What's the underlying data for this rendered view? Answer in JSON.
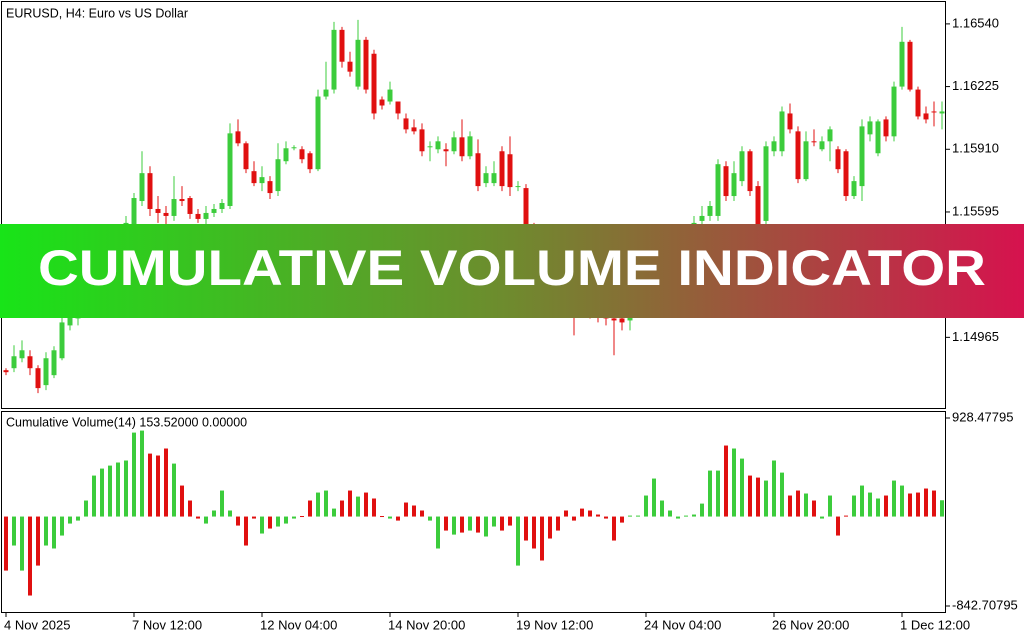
{
  "banner": "CUMULATIVE VOLUME INDICATOR",
  "chart_data": [
    {
      "type": "candlestick",
      "title": "EURUSD, H4:  Euro vs US Dollar",
      "up_color": "#3ccc3c",
      "down_color": "#e01010",
      "ylim": [
        1.1461,
        1.1665
      ],
      "yticks": [
        {
          "value": 1.1654,
          "label": "1.16540"
        },
        {
          "value": 1.16225,
          "label": "1.16225"
        },
        {
          "value": 1.1591,
          "label": "1.15910"
        },
        {
          "value": 1.15595,
          "label": "1.15595"
        },
        {
          "value": 1.14965,
          "label": "1.14965"
        }
      ],
      "categories": [
        "4 Nov 2025",
        null,
        null,
        null,
        null,
        null,
        null,
        null,
        null,
        null,
        null,
        null,
        null,
        null,
        null,
        null,
        "7 Nov 12:00",
        null,
        null,
        null,
        null,
        null,
        null,
        null,
        null,
        null,
        null,
        null,
        null,
        null,
        null,
        null,
        "12 Nov 04:00",
        null,
        null,
        null,
        null,
        null,
        null,
        null,
        null,
        null,
        null,
        null,
        null,
        null,
        null,
        null,
        "14 Nov 20:00",
        null,
        null,
        null,
        null,
        null,
        null,
        null,
        null,
        null,
        null,
        null,
        null,
        null,
        null,
        null,
        "19 Nov 12:00",
        null,
        null,
        null,
        null,
        null,
        null,
        null,
        null,
        null,
        null,
        null,
        null,
        null,
        null,
        null,
        "24 Nov 04:00",
        null,
        null,
        null,
        null,
        null,
        null,
        null,
        null,
        null,
        null,
        null,
        null,
        null,
        null,
        null,
        "26 Nov 20:00",
        null,
        null,
        null,
        null,
        null,
        null,
        null,
        null,
        null,
        null,
        null,
        null,
        null,
        null,
        null,
        "1 Dec 12:00",
        null,
        null,
        null,
        null,
        null
      ],
      "open": [
        1.148,
        1.1481,
        1.1486,
        1.1487,
        1.1481,
        1.14725,
        1.14775,
        1.1486,
        1.15025,
        1.1506,
        1.1515,
        1.15225,
        1.153,
        1.1534,
        1.1541,
        1.15475,
        1.15525,
        1.1565,
        1.1579,
        1.1561,
        1.1559,
        1.15575,
        1.1566,
        1.15665,
        1.15585,
        1.1556,
        1.1559,
        1.1561,
        1.15625,
        1.16,
        1.1594,
        1.158,
        1.1574,
        1.1575,
        1.157,
        1.1585,
        1.15915,
        1.1591,
        1.1589,
        1.1581,
        1.16175,
        1.1621,
        1.1651,
        1.1635,
        1.16225,
        1.1646,
        1.1639,
        1.1616,
        1.1615,
        1.1615,
        1.16065,
        1.1602,
        1.1601,
        1.1592,
        1.1591,
        1.1591,
        1.159,
        1.1597,
        1.15875,
        1.1589,
        1.1574,
        1.1574,
        1.159,
        1.15885,
        1.1572,
        1.15715,
        1.1551,
        1.15425,
        1.1534,
        1.153,
        1.1524,
        1.1519,
        1.1515,
        1.15125,
        1.151,
        1.15075,
        1.1506,
        1.1506,
        1.1505,
        1.151,
        1.1515,
        1.152,
        1.1526,
        1.15325,
        1.15375,
        1.15425,
        1.1549,
        1.1555,
        1.15575,
        1.15575,
        1.15825,
        1.15675,
        1.1575,
        1.159,
        1.15725,
        1.1555,
        1.159,
        1.159,
        1.1609,
        1.16,
        1.1576,
        1.1595,
        1.1591,
        1.1595,
        1.1591,
        1.159,
        1.15675,
        1.15725,
        1.15985,
        1.1589,
        1.1606,
        1.15975,
        1.16225,
        1.1645,
        1.1621,
        1.1609,
        1.161,
        1.1609
      ],
      "high": [
        1.1481,
        1.14925,
        1.1495,
        1.149,
        1.14825,
        1.1489,
        1.1492,
        1.15075,
        1.15125,
        1.152,
        1.1526,
        1.1534,
        1.154,
        1.1546,
        1.15525,
        1.15575,
        1.1569,
        1.159,
        1.15825,
        1.15675,
        1.15625,
        1.15775,
        1.15725,
        1.15675,
        1.1561,
        1.15625,
        1.15635,
        1.1566,
        1.1604,
        1.1606,
        1.1595,
        1.1585,
        1.15825,
        1.15775,
        1.1594,
        1.1595,
        1.1593,
        1.15925,
        1.159,
        1.1621,
        1.1635,
        1.1655,
        1.16525,
        1.164,
        1.1656,
        1.16475,
        1.1641,
        1.16175,
        1.1625,
        1.1615,
        1.1609,
        1.1606,
        1.1604,
        1.1595,
        1.15975,
        1.1594,
        1.16,
        1.1606,
        1.16,
        1.1596,
        1.15825,
        1.1585,
        1.15925,
        1.15975,
        1.1575,
        1.15735,
        1.1554,
        1.1546,
        1.15375,
        1.1534,
        1.15275,
        1.15225,
        1.15175,
        1.1516,
        1.15125,
        1.151,
        1.1515,
        1.15125,
        1.1514,
        1.15175,
        1.15225,
        1.1529,
        1.1535,
        1.1541,
        1.1545,
        1.1552,
        1.15575,
        1.15625,
        1.1565,
        1.1586,
        1.1585,
        1.1585,
        1.15925,
        1.1591,
        1.1575,
        1.1595,
        1.15975,
        1.16125,
        1.1614,
        1.16025,
        1.16,
        1.1601,
        1.15975,
        1.16025,
        1.15925,
        1.1591,
        1.15775,
        1.1606,
        1.16075,
        1.1606,
        1.16075,
        1.1625,
        1.16525,
        1.1646,
        1.16225,
        1.16125,
        1.1615,
        1.1615
      ],
      "low": [
        1.14775,
        1.1479,
        1.1484,
        1.14775,
        1.14685,
        1.147,
        1.1476,
        1.1485,
        1.15,
        1.15025,
        1.15125,
        1.152,
        1.1526,
        1.1531,
        1.15375,
        1.1545,
        1.155,
        1.15625,
        1.15575,
        1.1554,
        1.15525,
        1.1555,
        1.15625,
        1.1556,
        1.1554,
        1.1553,
        1.1557,
        1.1559,
        1.1561,
        1.15925,
        1.1579,
        1.15725,
        1.157,
        1.1566,
        1.15675,
        1.15835,
        1.15905,
        1.1584,
        1.1579,
        1.158,
        1.1616,
        1.1619,
        1.1632,
        1.16275,
        1.1621,
        1.1619,
        1.1606,
        1.1611,
        1.16135,
        1.1606,
        1.1599,
        1.15985,
        1.15875,
        1.1585,
        1.1589,
        1.15825,
        1.15885,
        1.1585,
        1.1586,
        1.157,
        1.1572,
        1.15725,
        1.157,
        1.15675,
        1.157,
        1.15475,
        1.15375,
        1.153,
        1.1525,
        1.152,
        1.1515,
        1.14975,
        1.1509,
        1.1506,
        1.1504,
        1.15025,
        1.14875,
        1.15,
        1.15,
        1.15075,
        1.15125,
        1.15175,
        1.15235,
        1.153,
        1.1535,
        1.154,
        1.1546,
        1.15525,
        1.1555,
        1.1555,
        1.1565,
        1.1565,
        1.15725,
        1.15675,
        1.155,
        1.15525,
        1.15875,
        1.15875,
        1.1599,
        1.1574,
        1.1575,
        1.15925,
        1.159,
        1.1585,
        1.1579,
        1.1565,
        1.1566,
        1.1565,
        1.1595,
        1.15875,
        1.1595,
        1.1595,
        1.1621,
        1.162,
        1.1606,
        1.1604,
        1.16025,
        1.1601
      ],
      "close": [
        1.1479,
        1.1487,
        1.149,
        1.1481,
        1.1471,
        1.1486,
        1.149,
        1.1504,
        1.1509,
        1.1515,
        1.15225,
        1.153,
        1.1535,
        1.15425,
        1.1549,
        1.1554,
        1.15665,
        1.1579,
        1.1561,
        1.1559,
        1.15575,
        1.1566,
        1.1565,
        1.15585,
        1.1556,
        1.1559,
        1.1561,
        1.1564,
        1.1599,
        1.1594,
        1.1581,
        1.1574,
        1.1577,
        1.1569,
        1.1586,
        1.15915,
        1.1592,
        1.1586,
        1.1581,
        1.16175,
        1.1621,
        1.1651,
        1.1635,
        1.163,
        1.1646,
        1.1621,
        1.1609,
        1.1613,
        1.1621,
        1.1609,
        1.1601,
        1.16,
        1.159,
        1.15925,
        1.1595,
        1.159,
        1.1597,
        1.15875,
        1.15975,
        1.15725,
        1.1579,
        1.1579,
        1.15725,
        1.1572,
        1.15725,
        1.1551,
        1.15425,
        1.1534,
        1.153,
        1.1524,
        1.1519,
        1.1515,
        1.15125,
        1.151,
        1.15075,
        1.1506,
        1.1505,
        1.1504,
        1.151,
        1.1515,
        1.152,
        1.1526,
        1.15325,
        1.15375,
        1.15425,
        1.1549,
        1.1554,
        1.15575,
        1.15625,
        1.15835,
        1.15675,
        1.1579,
        1.159,
        1.157,
        1.15525,
        1.15925,
        1.1595,
        1.161,
        1.1601,
        1.1576,
        1.1595,
        1.15945,
        1.1595,
        1.1601,
        1.1581,
        1.15675,
        1.1575,
        1.16025,
        1.1605,
        1.1605,
        1.15975,
        1.16225,
        1.1645,
        1.1621,
        1.16075,
        1.1606,
        1.161,
        1.161
      ]
    },
    {
      "type": "bar",
      "title": "Cumulative Volume(14) 153.52000 0.00000",
      "up_color": "#3ccc3c",
      "down_color": "#e01010",
      "ylim": [
        -842.70795,
        928.47795
      ],
      "yticks": [
        928.47795,
        -842.70795
      ],
      "values": [
        -509,
        -273,
        -509,
        -744,
        -462,
        -273,
        -301,
        -179,
        -66,
        -38,
        151,
        386,
        452,
        480,
        509,
        528,
        791,
        810,
        593,
        575,
        641,
        499,
        292,
        151,
        -19,
        -66,
        57,
        245,
        57,
        -85,
        -273,
        -19,
        -160,
        -113,
        -94,
        -66,
        -19,
        5,
        151,
        226,
        245,
        75,
        151,
        245,
        188,
        226,
        170,
        5,
        -19,
        -38,
        132,
        104,
        57,
        -38,
        -301,
        -132,
        -170,
        -151,
        -132,
        -151,
        -188,
        -94,
        -132,
        -85,
        -462,
        -226,
        -301,
        -414,
        -207,
        -132,
        57,
        -38,
        75,
        57,
        19,
        -19,
        -226,
        -57,
        9,
        9,
        198,
        358,
        151,
        57,
        -19,
        9,
        19,
        122,
        433,
        433,
        669,
        641,
        546,
        386,
        367,
        339,
        528,
        414,
        198,
        245,
        217,
        151,
        -19,
        198,
        -179,
        9,
        198,
        292,
        226,
        170,
        198,
        339,
        292,
        217,
        226,
        264,
        245,
        153.52
      ]
    }
  ]
}
